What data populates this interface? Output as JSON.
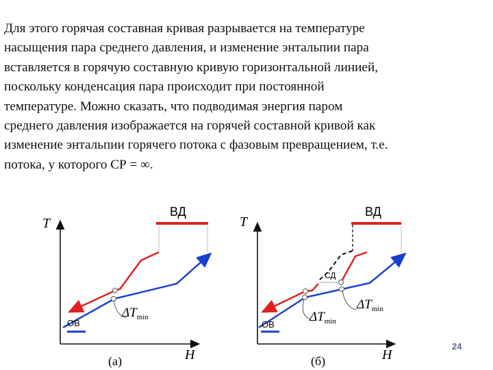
{
  "slide": {
    "paragraph": "Для этого горячая составная кривая разрывается на температуре\nнасыщения пара среднего давления, и изменение энтальпии пара\nвставляется в горячую составную кривую горизонтальной линией,\nпоскольку конденсация пара происходит при постоянной\nтемпературе. Можно сказать, что подводимая энергия паром\nсреднего давления изображается на горячей составной кривой как\nизменение энтальпии горячего потока с фазовым превращением, т.е.\nпотока, у которого СР = ∞.",
    "page_number": "24"
  },
  "diagram_a": {
    "axis_y": "T",
    "axis_x": "H",
    "top_label": "ВД",
    "bottom_label": "ОВ",
    "delta_symbol": "ΔT",
    "delta_sub": "min",
    "caption": "(а)"
  },
  "diagram_b": {
    "axis_y": "T",
    "axis_x": "H",
    "top_label": "ВД",
    "mid_label": "СД",
    "bottom_label": "ОВ",
    "delta_symbol_1": "ΔT",
    "delta_sub_1": "min",
    "delta_symbol_2": "ΔT",
    "delta_sub_2": "min",
    "caption": "(б)"
  },
  "colors": {
    "hot": "#e02020",
    "cold": "#1a3fd0",
    "axis": "#111111"
  }
}
